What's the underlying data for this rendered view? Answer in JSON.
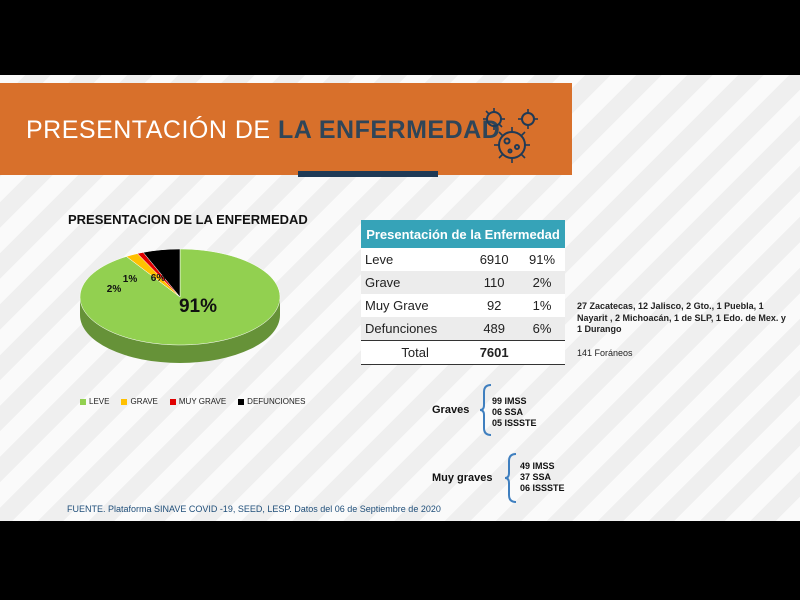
{
  "header": {
    "title_prefix": "PRESENTACIÓN DE ",
    "title_bold": "LA ENFERMEDAD",
    "color": "#d8702b",
    "icon": "virus-icon"
  },
  "chart_data": {
    "type": "pie",
    "title": "PRESENTACION DE LA ENFERMEDAD",
    "categories": [
      "LEVE",
      "GRAVE",
      "MUY GRAVE",
      "DEFUNCIONES"
    ],
    "values": [
      91,
      2,
      1,
      6
    ],
    "data_labels": [
      "91%",
      "2%",
      "1%",
      "6%"
    ],
    "colors": [
      "#92d050",
      "#ffc000",
      "#e00000",
      "#000000"
    ],
    "legend_position": "bottom"
  },
  "table": {
    "header": "Presentación de la Enfermedad",
    "rows": [
      {
        "label": "Leve",
        "count": "6910",
        "pct": "91%"
      },
      {
        "label": "Grave",
        "count": "110",
        "pct": "2%"
      },
      {
        "label": "Muy Grave",
        "count": "92",
        "pct": "1%"
      },
      {
        "label": "Defunciones",
        "count": "489",
        "pct": "6%"
      }
    ],
    "total_label": "Total",
    "total_value": "7601"
  },
  "foraneos_list": "27 Zacatecas, 12 Jalisco, 2 Gto., 1 Puebla, 1 Nayarit , 2 Michoacán, 1 de SLP, 1 Edo. de Mex. y 1 Durango",
  "foraneos": "141 Foráneos",
  "graves": {
    "label": "Graves",
    "items": [
      "99 IMSS",
      "06 SSA",
      "05 ISSSTE"
    ]
  },
  "muy_graves": {
    "label": "Muy graves",
    "items": [
      "49 IMSS",
      "37 SSA",
      "06 ISSSTE"
    ]
  },
  "fuente": "FUENTE. Plataforma SINAVE COVID -19, SEED, LESP. Datos del 06 de Septiembre de 2020"
}
